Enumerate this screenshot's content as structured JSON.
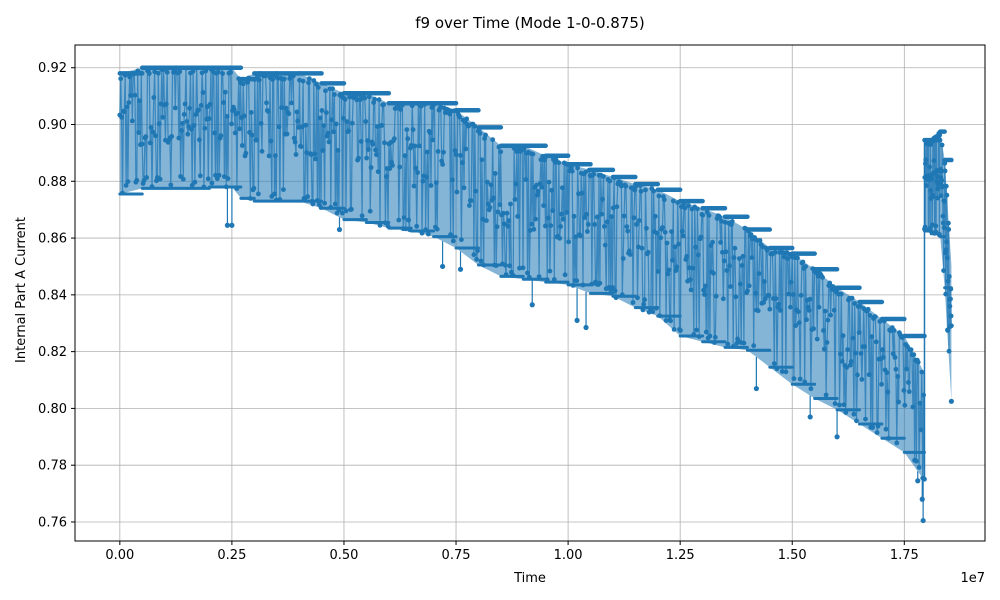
{
  "chart_data": {
    "type": "line",
    "title": "f9 over Time (Mode 1-0-0.875)",
    "xlabel": "Time",
    "ylabel": "Internal Part A Current",
    "x_offset_label": "1e7",
    "x_scale": 10000000,
    "xlim": [
      -1000000,
      19300000
    ],
    "ylim": [
      0.7533,
      0.928
    ],
    "x_ticks": [
      0,
      2500000,
      5000000,
      7500000,
      10000000,
      12500000,
      15000000,
      17500000
    ],
    "x_tick_labels": [
      "0.00",
      "0.25",
      "0.50",
      "0.75",
      "1.00",
      "1.25",
      "1.50",
      "1.75"
    ],
    "y_ticks": [
      0.76,
      0.78,
      0.8,
      0.82,
      0.84,
      0.86,
      0.88,
      0.9,
      0.92
    ],
    "y_tick_labels": [
      "0.76",
      "0.78",
      "0.80",
      "0.82",
      "0.84",
      "0.86",
      "0.88",
      "0.90",
      "0.92"
    ],
    "grid": true,
    "legend": "none",
    "series_color": "#1f77b4",
    "series": [
      {
        "x": [
          0,
          500000,
          1000000,
          1500000,
          2000000,
          2500000,
          2700000,
          3000000,
          3500000,
          4000000,
          4500000,
          5000000,
          5500000,
          6000000,
          6500000,
          7000000,
          7500000,
          8000000,
          8500000,
          9000000,
          9500000,
          10000000,
          10500000,
          11000000,
          11500000,
          12000000,
          12500000,
          13000000,
          13500000,
          14000000,
          14500000,
          15000000,
          15500000,
          16000000,
          16500000,
          17000000,
          17500000,
          17950000
        ],
        "upper": [
          0.918,
          0.92,
          0.92,
          0.92,
          0.92,
          0.92,
          0.916,
          0.918,
          0.918,
          0.918,
          0.9145,
          0.911,
          0.911,
          0.9075,
          0.9075,
          0.9075,
          0.905,
          0.899,
          0.8925,
          0.8925,
          0.889,
          0.886,
          0.884,
          0.8815,
          0.879,
          0.877,
          0.873,
          0.8705,
          0.8675,
          0.863,
          0.8565,
          0.8545,
          0.849,
          0.8425,
          0.8375,
          0.8315,
          0.8255,
          0.8125
        ],
        "lower": [
          0.8755,
          0.8775,
          0.8775,
          0.8775,
          0.878,
          0.878,
          0.874,
          0.873,
          0.873,
          0.873,
          0.8705,
          0.8665,
          0.8655,
          0.8635,
          0.8625,
          0.8605,
          0.8565,
          0.8505,
          0.8465,
          0.8455,
          0.8445,
          0.8435,
          0.8405,
          0.8395,
          0.8355,
          0.8325,
          0.8255,
          0.8235,
          0.8215,
          0.8205,
          0.8145,
          0.8085,
          0.8035,
          0.7995,
          0.7945,
          0.7895,
          0.7845,
          0.7745
        ]
      },
      {
        "x": [
          17950000,
          18100000,
          18300000,
          18400000,
          18550000
        ],
        "upper": [
          0.8945,
          0.8945,
          0.8975,
          0.8875,
          0.8505
        ],
        "lower": [
          0.8625,
          0.8615,
          0.8605,
          0.8425,
          0.8025
        ]
      }
    ],
    "outliers": [
      {
        "x": 2400000,
        "y": 0.8645
      },
      {
        "x": 2500000,
        "y": 0.8645
      },
      {
        "x": 4900000,
        "y": 0.863
      },
      {
        "x": 7200000,
        "y": 0.85
      },
      {
        "x": 7600000,
        "y": 0.849
      },
      {
        "x": 9200000,
        "y": 0.8365
      },
      {
        "x": 10200000,
        "y": 0.831
      },
      {
        "x": 10400000,
        "y": 0.8285
      },
      {
        "x": 14200000,
        "y": 0.807
      },
      {
        "x": 15400000,
        "y": 0.797
      },
      {
        "x": 16000000,
        "y": 0.79
      },
      {
        "x": 17800000,
        "y": 0.7745
      },
      {
        "x": 17900000,
        "y": 0.768
      },
      {
        "x": 17920000,
        "y": 0.7605
      },
      {
        "x": 18550000,
        "y": 0.8025
      }
    ]
  }
}
